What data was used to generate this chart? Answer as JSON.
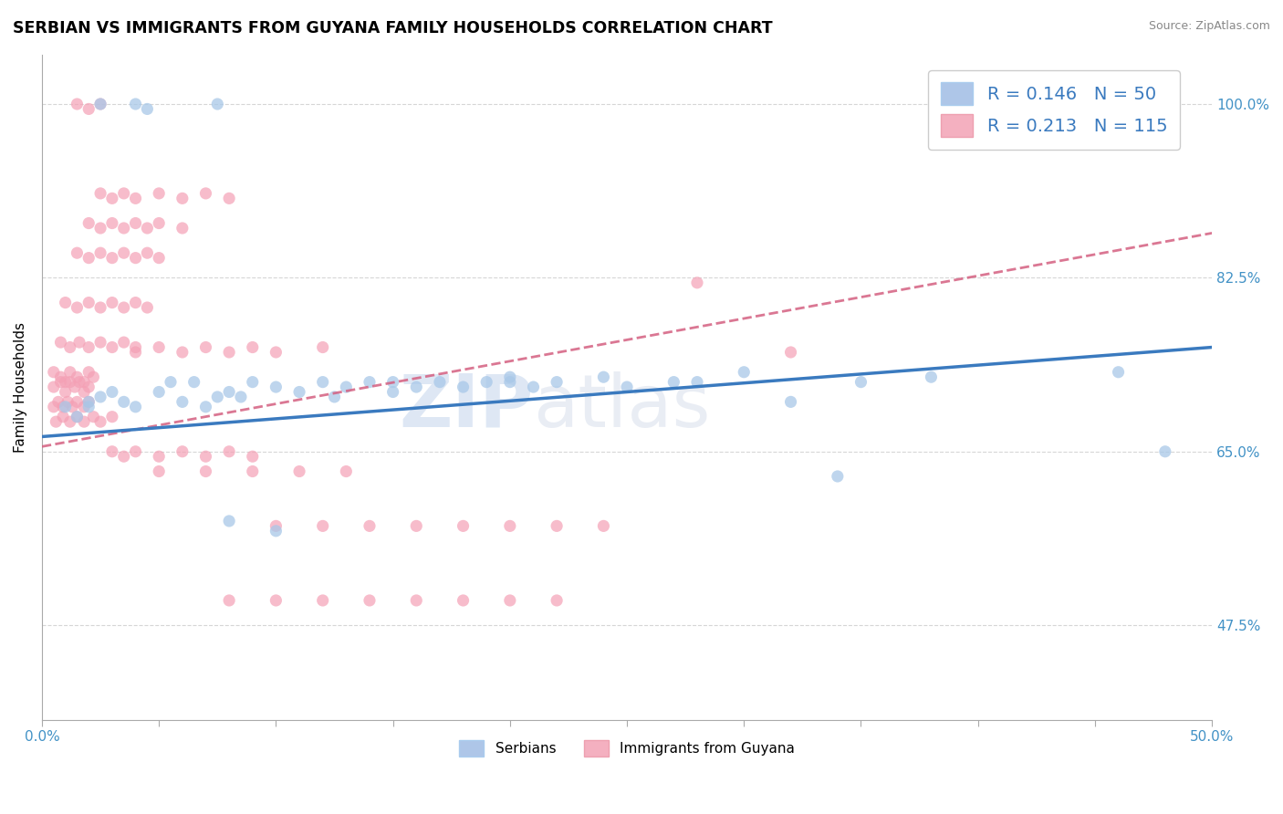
{
  "title": "SERBIAN VS IMMIGRANTS FROM GUYANA FAMILY HOUSEHOLDS CORRELATION CHART",
  "source": "Source: ZipAtlas.com",
  "ylabel": "Family Households",
  "y_tick_labels": [
    "47.5%",
    "65.0%",
    "82.5%",
    "100.0%"
  ],
  "y_tick_values": [
    0.475,
    0.65,
    0.825,
    1.0
  ],
  "x_lim": [
    0.0,
    0.5
  ],
  "y_lim": [
    0.38,
    1.05
  ],
  "legend_r_blue": "R = 0.146",
  "legend_n_blue": "N = 50",
  "legend_r_pink": "R = 0.213",
  "legend_n_pink": "N = 115",
  "legend_label_blue": "Serbians",
  "legend_label_pink": "Immigrants from Guyana",
  "color_blue": "#a8c8e8",
  "color_pink": "#f4a0b5",
  "color_blue_fill": "#aec6e8",
  "color_pink_fill": "#f4b0c0",
  "color_blue_line": "#3a7abf",
  "color_pink_line": "#d45f80",
  "watermark_zip": "ZIP",
  "watermark_atlas": "atlas",
  "blue_trend_x0": 0.0,
  "blue_trend_y0": 0.665,
  "blue_trend_x1": 0.5,
  "blue_trend_y1": 0.755,
  "pink_trend_x0": 0.0,
  "pink_trend_y0": 0.655,
  "pink_trend_x1": 0.5,
  "pink_trend_y1": 0.87,
  "blue_scatter_x": [
    0.025,
    0.04,
    0.045,
    0.075,
    0.01,
    0.015,
    0.02,
    0.02,
    0.025,
    0.03,
    0.035,
    0.04,
    0.05,
    0.055,
    0.06,
    0.065,
    0.07,
    0.075,
    0.08,
    0.085,
    0.09,
    0.1,
    0.11,
    0.12,
    0.125,
    0.13,
    0.14,
    0.15,
    0.16,
    0.17,
    0.18,
    0.19,
    0.2,
    0.21,
    0.22,
    0.24,
    0.27,
    0.3,
    0.35,
    0.38,
    0.46,
    0.48,
    0.28,
    0.32,
    0.34,
    0.2,
    0.25,
    0.15,
    0.1,
    0.08
  ],
  "blue_scatter_y": [
    1.0,
    1.0,
    0.995,
    1.0,
    0.695,
    0.685,
    0.695,
    0.7,
    0.705,
    0.71,
    0.7,
    0.695,
    0.71,
    0.72,
    0.7,
    0.72,
    0.695,
    0.705,
    0.71,
    0.705,
    0.72,
    0.715,
    0.71,
    0.72,
    0.705,
    0.715,
    0.72,
    0.71,
    0.715,
    0.72,
    0.715,
    0.72,
    0.725,
    0.715,
    0.72,
    0.725,
    0.72,
    0.73,
    0.72,
    0.725,
    0.73,
    0.65,
    0.72,
    0.7,
    0.625,
    0.72,
    0.715,
    0.72,
    0.57,
    0.58
  ],
  "pink_scatter_x": [
    0.005,
    0.008,
    0.01,
    0.012,
    0.014,
    0.016,
    0.018,
    0.02,
    0.005,
    0.008,
    0.01,
    0.012,
    0.015,
    0.018,
    0.02,
    0.022,
    0.005,
    0.007,
    0.009,
    0.011,
    0.013,
    0.015,
    0.018,
    0.02,
    0.006,
    0.009,
    0.012,
    0.015,
    0.018,
    0.022,
    0.025,
    0.03,
    0.008,
    0.012,
    0.016,
    0.02,
    0.025,
    0.03,
    0.035,
    0.04,
    0.01,
    0.015,
    0.02,
    0.025,
    0.03,
    0.035,
    0.04,
    0.045,
    0.015,
    0.02,
    0.025,
    0.03,
    0.035,
    0.04,
    0.045,
    0.05,
    0.02,
    0.025,
    0.03,
    0.035,
    0.04,
    0.045,
    0.05,
    0.06,
    0.025,
    0.03,
    0.035,
    0.04,
    0.05,
    0.06,
    0.07,
    0.08,
    0.04,
    0.05,
    0.06,
    0.07,
    0.08,
    0.09,
    0.1,
    0.12,
    0.05,
    0.07,
    0.09,
    0.11,
    0.13,
    0.015,
    0.02,
    0.025,
    0.03,
    0.035,
    0.04,
    0.05,
    0.06,
    0.07,
    0.08,
    0.09,
    0.1,
    0.12,
    0.14,
    0.16,
    0.18,
    0.2,
    0.22,
    0.24,
    0.08,
    0.1,
    0.12,
    0.14,
    0.16,
    0.18,
    0.2,
    0.22,
    0.28,
    0.32
  ],
  "pink_scatter_y": [
    0.715,
    0.72,
    0.71,
    0.72,
    0.715,
    0.72,
    0.71,
    0.715,
    0.73,
    0.725,
    0.72,
    0.73,
    0.725,
    0.72,
    0.73,
    0.725,
    0.695,
    0.7,
    0.695,
    0.7,
    0.695,
    0.7,
    0.695,
    0.7,
    0.68,
    0.685,
    0.68,
    0.685,
    0.68,
    0.685,
    0.68,
    0.685,
    0.76,
    0.755,
    0.76,
    0.755,
    0.76,
    0.755,
    0.76,
    0.755,
    0.8,
    0.795,
    0.8,
    0.795,
    0.8,
    0.795,
    0.8,
    0.795,
    0.85,
    0.845,
    0.85,
    0.845,
    0.85,
    0.845,
    0.85,
    0.845,
    0.88,
    0.875,
    0.88,
    0.875,
    0.88,
    0.875,
    0.88,
    0.875,
    0.91,
    0.905,
    0.91,
    0.905,
    0.91,
    0.905,
    0.91,
    0.905,
    0.75,
    0.755,
    0.75,
    0.755,
    0.75,
    0.755,
    0.75,
    0.755,
    0.63,
    0.63,
    0.63,
    0.63,
    0.63,
    1.0,
    0.995,
    1.0,
    0.65,
    0.645,
    0.65,
    0.645,
    0.65,
    0.645,
    0.65,
    0.645,
    0.575,
    0.575,
    0.575,
    0.575,
    0.575,
    0.575,
    0.575,
    0.575,
    0.5,
    0.5,
    0.5,
    0.5,
    0.5,
    0.5,
    0.5,
    0.5,
    0.82,
    0.75
  ]
}
